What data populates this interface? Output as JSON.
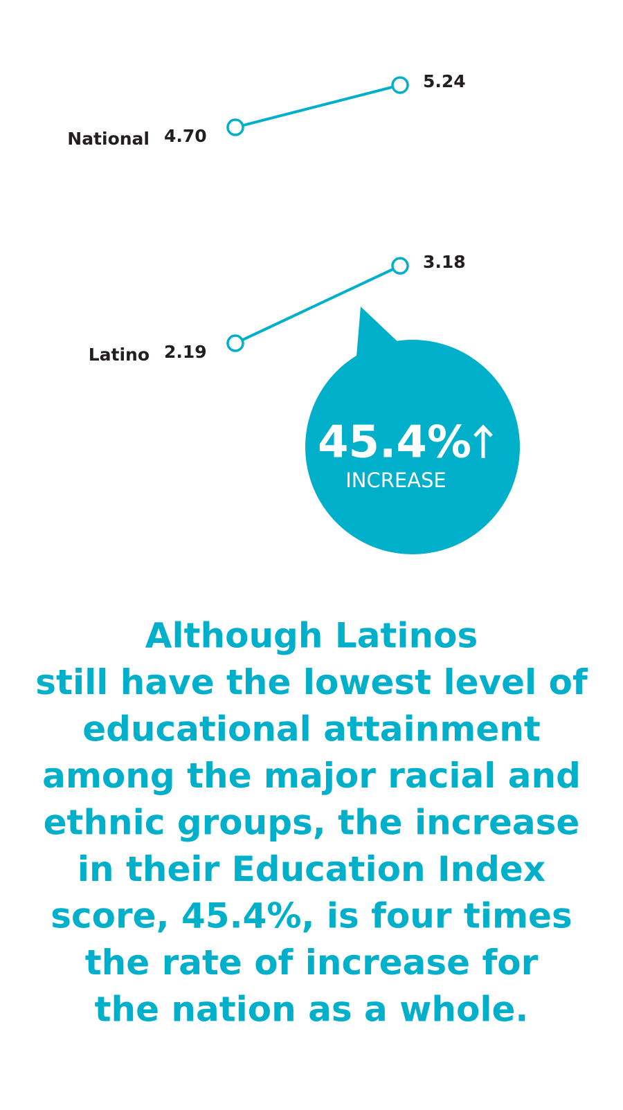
{
  "chart_data": {
    "type": "slope",
    "color": "#00afc9",
    "series": [
      {
        "name": "National",
        "values": [
          4.7,
          5.24
        ],
        "value_labels": [
          "4.70",
          "5.24"
        ]
      },
      {
        "name": "Latino",
        "values": [
          2.19,
          3.18
        ],
        "value_labels": [
          "2.19",
          "3.18"
        ]
      }
    ],
    "callout": {
      "value": "45.4%",
      "label": "INCREASE"
    },
    "body": [
      "Although Latinos",
      "still have the lowest level of",
      "educational attainment",
      "among the major racial and",
      "ethnic groups, the increase",
      "in their Education Index",
      "score, 45.4%, is four times",
      "the rate of increase for",
      "the nation as a whole."
    ]
  }
}
